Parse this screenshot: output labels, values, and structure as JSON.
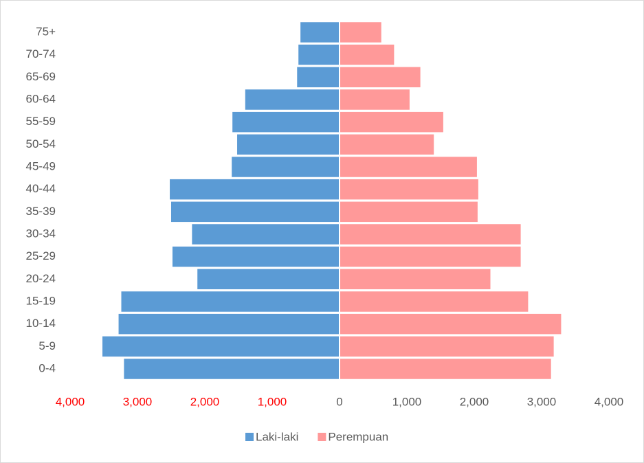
{
  "chart_data": {
    "type": "pyramid",
    "categories": [
      "0-4",
      "5-9",
      "10-14",
      "15-19",
      "20-24",
      "25-29",
      "30-34",
      "35-39",
      "40-44",
      "45-49",
      "50-54",
      "55-59",
      "60-64",
      "65-69",
      "70-74",
      "75+"
    ],
    "series": [
      {
        "name": "Laki-laki",
        "color": "#5b9bd5",
        "values": [
          -3200,
          -3520,
          -3280,
          -3240,
          -2110,
          -2480,
          -2190,
          -2500,
          -2520,
          -1600,
          -1520,
          -1590,
          -1400,
          -630,
          -610,
          -580
        ]
      },
      {
        "name": "Perempuan",
        "color": "#ff9999",
        "values": [
          3140,
          3180,
          3290,
          2800,
          2240,
          2690,
          2690,
          2050,
          2060,
          2040,
          1400,
          1540,
          1040,
          1200,
          810,
          620
        ]
      }
    ],
    "xlim": [
      -4000,
      4000
    ],
    "xticks": [
      {
        "value": -4000,
        "label": "4,000"
      },
      {
        "value": -3000,
        "label": "3,000"
      },
      {
        "value": -2000,
        "label": "2,000"
      },
      {
        "value": -1000,
        "label": "1,000"
      },
      0,
      {
        "value": 1000,
        "label": "1,000"
      },
      {
        "value": 2000,
        "label": "2,000"
      },
      {
        "value": 3000,
        "label": "3,000"
      },
      {
        "value": 4000,
        "label": "4,000"
      }
    ],
    "legend": "bottom"
  }
}
